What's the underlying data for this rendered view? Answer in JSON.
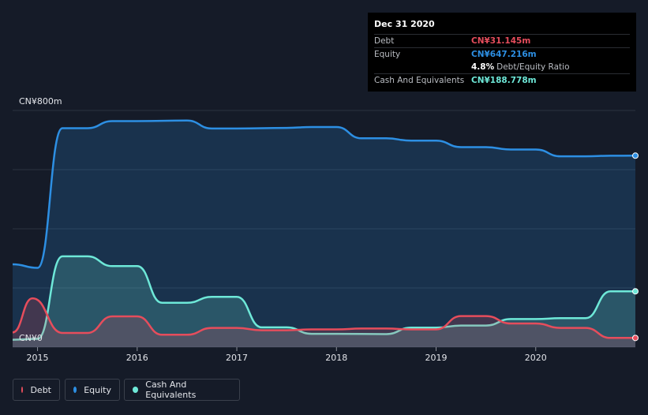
{
  "tooltip": {
    "date": "Dec 31 2020",
    "debt_label": "Debt",
    "debt_value": "CN¥31.145m",
    "equity_label": "Equity",
    "equity_value": "CN¥647.216m",
    "ratio_value": "4.8%",
    "ratio_label": "Debt/Equity Ratio",
    "cash_label": "Cash And Equivalents",
    "cash_value": "CN¥188.778m"
  },
  "colors": {
    "background": "#151b28",
    "debt": "#e64d5c",
    "equity": "#2d8fe3",
    "cash": "#6ee8d8",
    "gridline": "#2c3341"
  },
  "legend": [
    {
      "name": "Debt",
      "color": "#e64d5c"
    },
    {
      "name": "Equity",
      "color": "#2d8fe3"
    },
    {
      "name": "Cash And Equivalents",
      "color": "#6ee8d8"
    }
  ],
  "chart_data": {
    "type": "area",
    "y_top_label": "CN¥800m",
    "y_bottom_label": "CN¥0",
    "ylim": [
      0,
      800
    ],
    "xlim": [
      2014.75,
      2021.0
    ],
    "x_ticks": [
      {
        "value": 2015,
        "label": "2015"
      },
      {
        "value": 2016,
        "label": "2016"
      },
      {
        "value": 2017,
        "label": "2017"
      },
      {
        "value": 2018,
        "label": "2018"
      },
      {
        "value": 2019,
        "label": "2019"
      },
      {
        "value": 2020,
        "label": "2020"
      }
    ],
    "grid": true,
    "legend_position": "bottom-left",
    "series": [
      {
        "name": "Equity",
        "color": "#2d8fe3",
        "points": [
          [
            2014.75,
            280
          ],
          [
            2015.0,
            268
          ],
          [
            2015.25,
            740
          ],
          [
            2015.5,
            740
          ],
          [
            2015.75,
            764
          ],
          [
            2016.0,
            764
          ],
          [
            2016.5,
            766
          ],
          [
            2016.75,
            739
          ],
          [
            2017.0,
            739
          ],
          [
            2017.5,
            741
          ],
          [
            2017.75,
            744
          ],
          [
            2018.0,
            744
          ],
          [
            2018.25,
            706
          ],
          [
            2018.5,
            706
          ],
          [
            2018.75,
            698
          ],
          [
            2019.0,
            698
          ],
          [
            2019.25,
            676
          ],
          [
            2019.5,
            676
          ],
          [
            2019.75,
            668
          ],
          [
            2020.0,
            668
          ],
          [
            2020.25,
            645
          ],
          [
            2020.5,
            645
          ],
          [
            2020.75,
            647
          ],
          [
            2021.0,
            647.216
          ]
        ]
      },
      {
        "name": "Cash And Equivalents",
        "color": "#6ee8d8",
        "points": [
          [
            2014.75,
            25
          ],
          [
            2015.0,
            28
          ],
          [
            2015.25,
            307
          ],
          [
            2015.5,
            307
          ],
          [
            2015.75,
            274
          ],
          [
            2016.0,
            274
          ],
          [
            2016.25,
            150
          ],
          [
            2016.5,
            150
          ],
          [
            2016.75,
            170
          ],
          [
            2017.0,
            170
          ],
          [
            2017.25,
            67
          ],
          [
            2017.5,
            67
          ],
          [
            2017.75,
            45
          ],
          [
            2018.0,
            45
          ],
          [
            2018.5,
            44
          ],
          [
            2018.75,
            66
          ],
          [
            2019.0,
            66
          ],
          [
            2019.25,
            73
          ],
          [
            2019.5,
            73
          ],
          [
            2019.75,
            95
          ],
          [
            2020.0,
            95
          ],
          [
            2020.25,
            98
          ],
          [
            2020.5,
            98
          ],
          [
            2020.75,
            188.778
          ],
          [
            2021.0,
            188.778
          ]
        ]
      },
      {
        "name": "Debt",
        "color": "#e64d5c",
        "points": [
          [
            2014.75,
            50
          ],
          [
            2014.95,
            165
          ],
          [
            2015.25,
            48
          ],
          [
            2015.5,
            48
          ],
          [
            2015.75,
            104
          ],
          [
            2016.0,
            104
          ],
          [
            2016.25,
            42
          ],
          [
            2016.5,
            42
          ],
          [
            2016.75,
            65
          ],
          [
            2017.0,
            65
          ],
          [
            2017.25,
            57
          ],
          [
            2017.5,
            57
          ],
          [
            2017.75,
            60
          ],
          [
            2018.0,
            60
          ],
          [
            2018.25,
            63
          ],
          [
            2018.5,
            63
          ],
          [
            2018.75,
            60
          ],
          [
            2019.0,
            60
          ],
          [
            2019.25,
            105
          ],
          [
            2019.5,
            105
          ],
          [
            2019.75,
            80
          ],
          [
            2020.0,
            80
          ],
          [
            2020.25,
            65
          ],
          [
            2020.5,
            65
          ],
          [
            2020.75,
            31.145
          ],
          [
            2021.0,
            31.145
          ]
        ]
      }
    ]
  }
}
